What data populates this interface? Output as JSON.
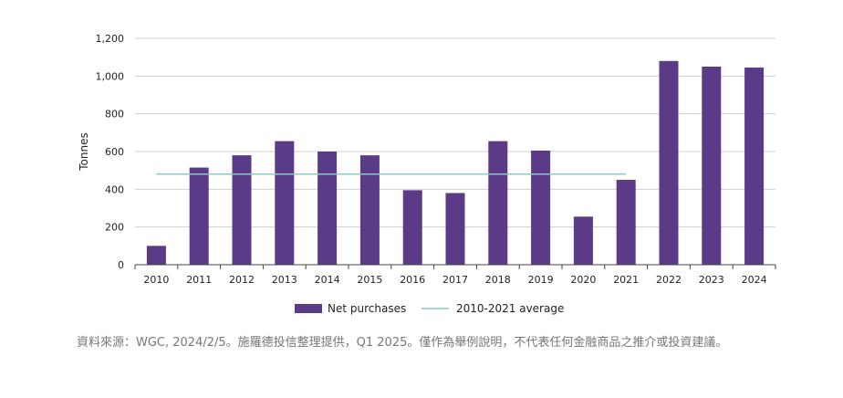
{
  "chart_data": {
    "type": "bar",
    "ylabel": "Tonnes",
    "ylim": [
      0,
      1200
    ],
    "yticks": [
      0,
      200,
      400,
      600,
      800,
      1000,
      1200
    ],
    "ytick_labels": [
      "0",
      "200",
      "400",
      "600",
      "800",
      "1,000",
      "1,200"
    ],
    "categories": [
      "2010",
      "2011",
      "2012",
      "2013",
      "2014",
      "2015",
      "2016",
      "2017",
      "2018",
      "2019",
      "2020",
      "2021",
      "2022",
      "2023",
      "2024"
    ],
    "series": [
      {
        "name": "Net purchases",
        "color": "#5b3a87",
        "values": [
          100,
          515,
          580,
          655,
          600,
          580,
          395,
          380,
          655,
          605,
          255,
          450,
          1080,
          1050,
          1045
        ]
      }
    ],
    "reference_line": {
      "name": "2010-2021 average",
      "color": "#8ec9c4",
      "value": 480,
      "from": "2010",
      "to": "2021"
    },
    "grid": true,
    "legend": "bottom-center"
  },
  "footer": {
    "note": "資料來源：WGC, 2024/2/5。施羅德投信整理提供，Q1 2025。僅作為舉例說明，不代表任何金融商品之推介或投資建議。"
  }
}
